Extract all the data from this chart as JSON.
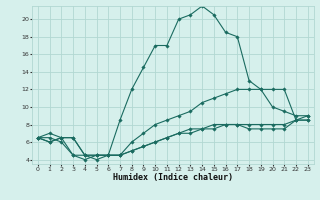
{
  "title": "",
  "xlabel": "Humidex (Indice chaleur)",
  "bg_color": "#d6f0ec",
  "grid_color": "#b2d8d2",
  "line_color": "#1a6b60",
  "xlim": [
    -0.5,
    23.5
  ],
  "ylim": [
    3.5,
    21.5
  ],
  "yticks": [
    4,
    6,
    8,
    10,
    12,
    14,
    16,
    18,
    20
  ],
  "xticks": [
    0,
    1,
    2,
    3,
    4,
    5,
    6,
    7,
    8,
    9,
    10,
    11,
    12,
    13,
    14,
    15,
    16,
    17,
    18,
    19,
    20,
    21,
    22,
    23
  ],
  "series1": [
    6.5,
    6.5,
    6.0,
    4.5,
    4.0,
    4.5,
    4.5,
    8.5,
    12.0,
    14.5,
    17.0,
    17.0,
    20.0,
    20.5,
    21.5,
    20.5,
    18.5,
    18.0,
    13.0,
    12.0,
    10.0,
    9.5,
    9.0,
    9.0
  ],
  "series2": [
    6.5,
    6.0,
    6.5,
    6.5,
    4.5,
    4.5,
    4.5,
    4.5,
    6.0,
    7.0,
    8.0,
    8.5,
    9.0,
    9.5,
    10.5,
    11.0,
    11.5,
    12.0,
    12.0,
    12.0,
    12.0,
    12.0,
    8.5,
    9.0
  ],
  "series3": [
    6.5,
    6.0,
    6.5,
    6.5,
    4.5,
    4.5,
    4.5,
    4.5,
    5.0,
    5.5,
    6.0,
    6.5,
    7.0,
    7.0,
    7.5,
    7.5,
    8.0,
    8.0,
    7.5,
    7.5,
    7.5,
    7.5,
    8.5,
    8.5
  ],
  "series4": [
    6.5,
    7.0,
    6.5,
    4.5,
    4.5,
    4.0,
    4.5,
    4.5,
    5.0,
    5.5,
    6.0,
    6.5,
    7.0,
    7.5,
    7.5,
    8.0,
    8.0,
    8.0,
    8.0,
    8.0,
    8.0,
    8.0,
    8.5,
    8.5
  ]
}
